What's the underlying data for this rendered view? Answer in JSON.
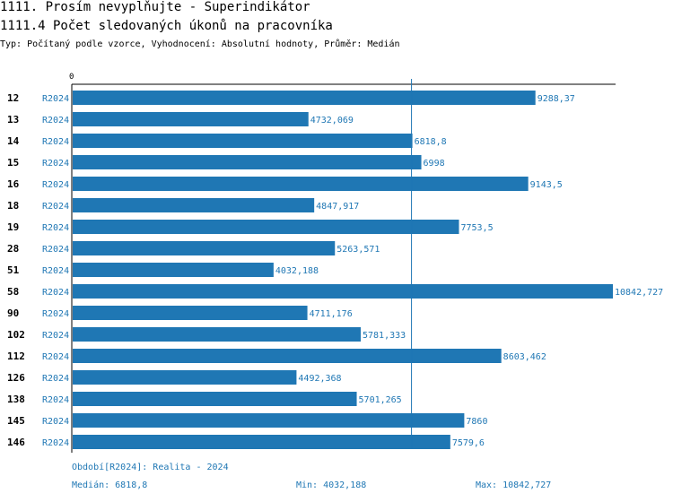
{
  "header": {
    "title": "1111. Prosím nevyplňujte - Superindikátor",
    "subtitle": "1111.4 Počet sledovaných úkonů na pracovníka",
    "type_line": "Typ: Počítaný podle vzorce, Vyhodnocení: Absolutní hodnoty, Průměr: Medián"
  },
  "chart_data": {
    "type": "bar",
    "orientation": "horizontal",
    "axis_zero_label": "0",
    "series_label": "R2024",
    "categories": [
      "12",
      "13",
      "14",
      "15",
      "16",
      "18",
      "19",
      "28",
      "51",
      "58",
      "90",
      "102",
      "112",
      "126",
      "138",
      "145",
      "146"
    ],
    "values": [
      9288.37,
      4732.069,
      6818.8,
      6998,
      9143.5,
      4847.917,
      7753.5,
      5263.571,
      4032.188,
      10842.727,
      4711.176,
      5781.333,
      8603.462,
      4492.368,
      5701.265,
      7860,
      7579.6
    ],
    "value_labels": [
      "9288,37",
      "4732,069",
      "6818,8",
      "6998",
      "9143,5",
      "4847,917",
      "7753,5",
      "5263,571",
      "4032,188",
      "10842,727",
      "4711,176",
      "5781,333",
      "8603,462",
      "4492,368",
      "5701,265",
      "7860",
      "7579,6"
    ],
    "median": 6818.8,
    "xlim": [
      0,
      10842.727
    ],
    "bar_color": "#1f77b4"
  },
  "footer": {
    "period": "Období[R2024]: Realita - 2024",
    "median": "Medián: 6818,8",
    "min": "Min: 4032,188",
    "max": "Max: 10842,727"
  }
}
